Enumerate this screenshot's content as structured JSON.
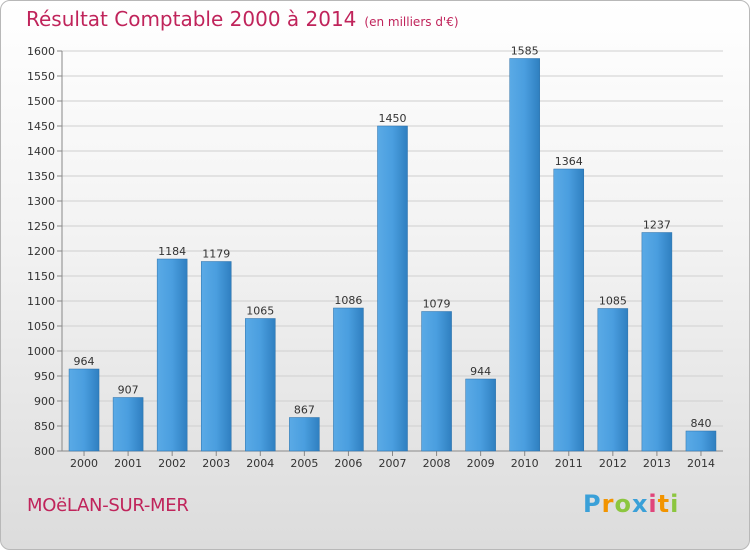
{
  "chart_data": {
    "type": "bar",
    "title": "Résultat Comptable 2000 à 2014",
    "subtitle": "(en milliers d'€)",
    "categories": [
      "2000",
      "2001",
      "2002",
      "2003",
      "2004",
      "2005",
      "2006",
      "2007",
      "2008",
      "2009",
      "2010",
      "2011",
      "2012",
      "2013",
      "2014"
    ],
    "values": [
      964,
      907,
      1184,
      1179,
      1065,
      867,
      1086,
      1450,
      1079,
      944,
      1585,
      1364,
      1085,
      1237,
      840
    ],
    "ylim": [
      800,
      1600
    ],
    "ytick_step": 50,
    "xlabel": "",
    "ylabel": "",
    "grid": true,
    "bar_color": "#3d93d6"
  },
  "footer": {
    "commune": "MOëLAN-SUR-MER",
    "brand": "Proxiti"
  }
}
